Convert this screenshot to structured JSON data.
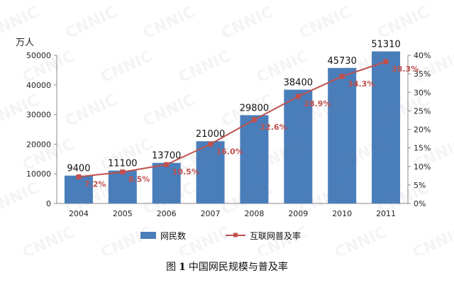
{
  "chart_data": {
    "type": "bar",
    "categories": [
      "2004",
      "2005",
      "2006",
      "2007",
      "2008",
      "2009",
      "2010",
      "2011"
    ],
    "y_unit_label": "万人",
    "ylim": [
      0,
      50000
    ],
    "yticks": [
      0,
      10000,
      20000,
      30000,
      40000,
      50000
    ],
    "y2lim": [
      0,
      40
    ],
    "y2ticks": [
      "0%",
      "5%",
      "10%",
      "15%",
      "20%",
      "25%",
      "30%",
      "35%",
      "40%"
    ],
    "grid": false,
    "legend_position": "bottom",
    "series": [
      {
        "name": "网民数",
        "type": "bar",
        "axis": "left",
        "color": "#4a7ebb",
        "values": [
          9400,
          11100,
          13700,
          21000,
          29800,
          38400,
          45730,
          51310
        ],
        "labels": [
          "9400",
          "11100",
          "13700",
          "21000",
          "29800",
          "38400",
          "45730",
          "51310"
        ]
      },
      {
        "name": "互联网普及率",
        "type": "line",
        "axis": "right",
        "color": "#c0504d",
        "values": [
          7.2,
          8.5,
          10.5,
          16.0,
          22.6,
          28.9,
          34.3,
          38.3
        ],
        "labels": [
          "7.2%",
          "8.5%",
          "10.5%",
          "16.0%",
          "22.6%",
          "28.9%",
          "34.3%",
          "38.3%"
        ]
      }
    ]
  },
  "caption": {
    "prefix": "图",
    "number": "1",
    "text": "中国网民规模与普及率"
  },
  "watermark": "CNNIC"
}
